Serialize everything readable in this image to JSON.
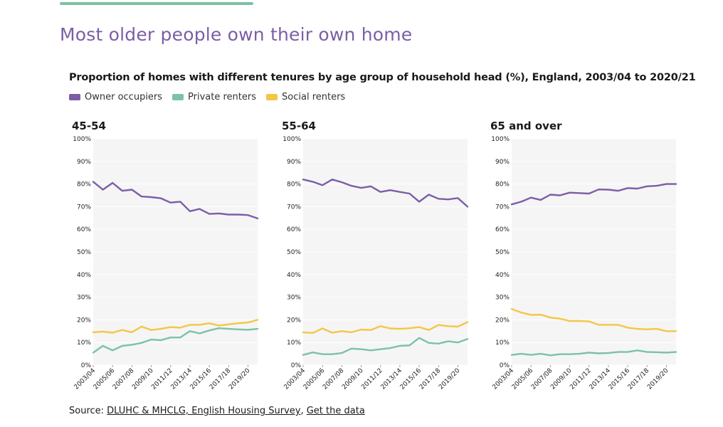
{
  "page": {
    "title": "Most older people own their own home"
  },
  "chart_data": {
    "type": "line",
    "title": "Proportion of homes with different tenures by age group of household head (%), England, 2003/04 to 2020/21",
    "legend": [
      "Owner occupiers",
      "Private renters",
      "Social renters"
    ],
    "legend_position": "top-left",
    "colors": {
      "Owner occupiers": "#7b5ea7",
      "Private renters": "#7cc2a4",
      "Social renters": "#f3c744",
      "plot_bg": "#f5f5f5",
      "grid": "#ffffff"
    },
    "x": [
      "2003/04",
      "2004/05",
      "2005/06",
      "2006/07",
      "2007/08",
      "2008/09",
      "2009/10",
      "2010/11",
      "2011/12",
      "2012/13",
      "2013/14",
      "2014/15",
      "2015/16",
      "2016/17",
      "2017/18",
      "2018/19",
      "2019/20",
      "2020/21"
    ],
    "x_tick_labels": [
      "2003/04",
      "2005/06",
      "2007/08",
      "2009/10",
      "2011/12",
      "2013/14",
      "2015/16",
      "2017/18",
      "2019/20"
    ],
    "y_ticks": [
      "0%",
      "10%",
      "20%",
      "30%",
      "40%",
      "50%",
      "60%",
      "70%",
      "80%",
      "90%",
      "100%"
    ],
    "ylim": [
      0,
      100
    ],
    "grid": true,
    "panels": [
      {
        "title": "45-54",
        "series": [
          {
            "name": "Owner occupiers",
            "values": [
              81,
              77.5,
              80.5,
              77,
              77.5,
              74.5,
              74.2,
              73.7,
              71.8,
              72.2,
              68,
              69,
              66.8,
              67,
              66.5,
              66.5,
              66.3,
              64.8
            ]
          },
          {
            "name": "Private renters",
            "values": [
              5.5,
              8.5,
              6.5,
              8.5,
              9,
              9.8,
              11.3,
              11,
              12.2,
              12.2,
              15,
              14,
              15.3,
              16.3,
              16,
              15.8,
              15.6,
              16
            ]
          },
          {
            "name": "Social renters",
            "values": [
              14.5,
              14.8,
              14.3,
              15.5,
              14.5,
              17,
              15.5,
              16,
              16.8,
              16.5,
              17.8,
              17.8,
              18.5,
              17.5,
              18,
              18.5,
              18.8,
              20
            ]
          }
        ]
      },
      {
        "title": "55-64",
        "series": [
          {
            "name": "Owner occupiers",
            "values": [
              82,
              81,
              79.5,
              82,
              80.8,
              79.2,
              78.3,
              79,
              76.5,
              77.3,
              76.5,
              75.8,
              72.2,
              75.3,
              73.5,
              73.2,
              73.8,
              70
            ]
          },
          {
            "name": "Private renters",
            "values": [
              4.5,
              5.6,
              4.8,
              4.8,
              5.3,
              7.3,
              7,
              6.5,
              7,
              7.5,
              8.5,
              8.7,
              12,
              9.8,
              9.5,
              10.5,
              10,
              11.5
            ]
          },
          {
            "name": "Social renters",
            "values": [
              14.5,
              14.2,
              16.2,
              14.3,
              15,
              14.5,
              15.7,
              15.5,
              17.2,
              16.2,
              16,
              16.3,
              16.8,
              15.5,
              17.7,
              17.2,
              17,
              19
            ]
          }
        ]
      },
      {
        "title": "65 and over",
        "series": [
          {
            "name": "Owner occupiers",
            "values": [
              71,
              72.2,
              74,
              73,
              75.3,
              75,
              76.2,
              76,
              75.8,
              77.6,
              77.5,
              77,
              78.2,
              78,
              79,
              79.2,
              80,
              80
            ]
          },
          {
            "name": "Private renters",
            "values": [
              4.5,
              5,
              4.5,
              5,
              4.3,
              4.8,
              4.8,
              5,
              5.5,
              5.2,
              5.3,
              5.8,
              5.8,
              6.5,
              5.8,
              5.7,
              5.5,
              5.8
            ]
          },
          {
            "name": "Social renters",
            "values": [
              24.8,
              23.2,
              22.2,
              22.3,
              21,
              20.5,
              19.5,
              19.5,
              19.3,
              17.8,
              17.8,
              17.8,
              16.5,
              16,
              15.8,
              16,
              15,
              15
            ]
          }
        ]
      }
    ]
  },
  "source": {
    "prefix": "Source: ",
    "link1": "DLUHC & MHCLG, English Housing Survey",
    "separator": ", ",
    "link2": "Get the data"
  }
}
